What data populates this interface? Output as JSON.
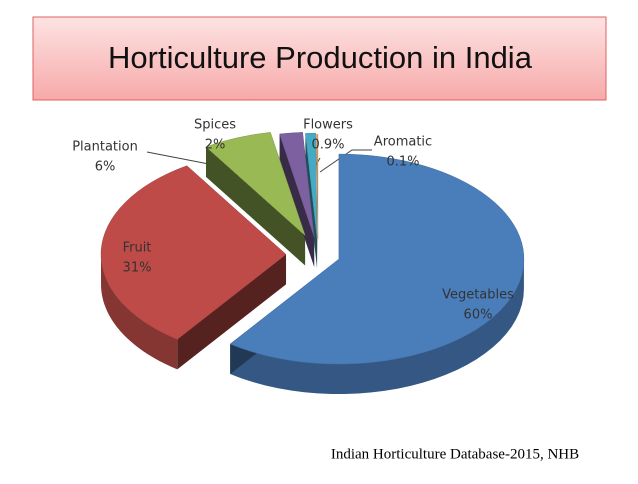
{
  "chart_data": {
    "type": "pie",
    "title": "Horticulture Production in India",
    "categories": [
      "Vegetables",
      "Fruit",
      "Plantation",
      "Spices",
      "Flowers",
      "Aromatic"
    ],
    "values": [
      60,
      31,
      6,
      2,
      0.9,
      0.1
    ],
    "value_labels": [
      "60%",
      "31%",
      "6%",
      "2%",
      "0.9%",
      "0.1%"
    ],
    "colors": [
      "#4a7ebb",
      "#be4b48",
      "#98b954",
      "#7d60a0",
      "#46aac5",
      "#f79646"
    ],
    "source": "Indian Horticulture Database-2015, NHB"
  }
}
